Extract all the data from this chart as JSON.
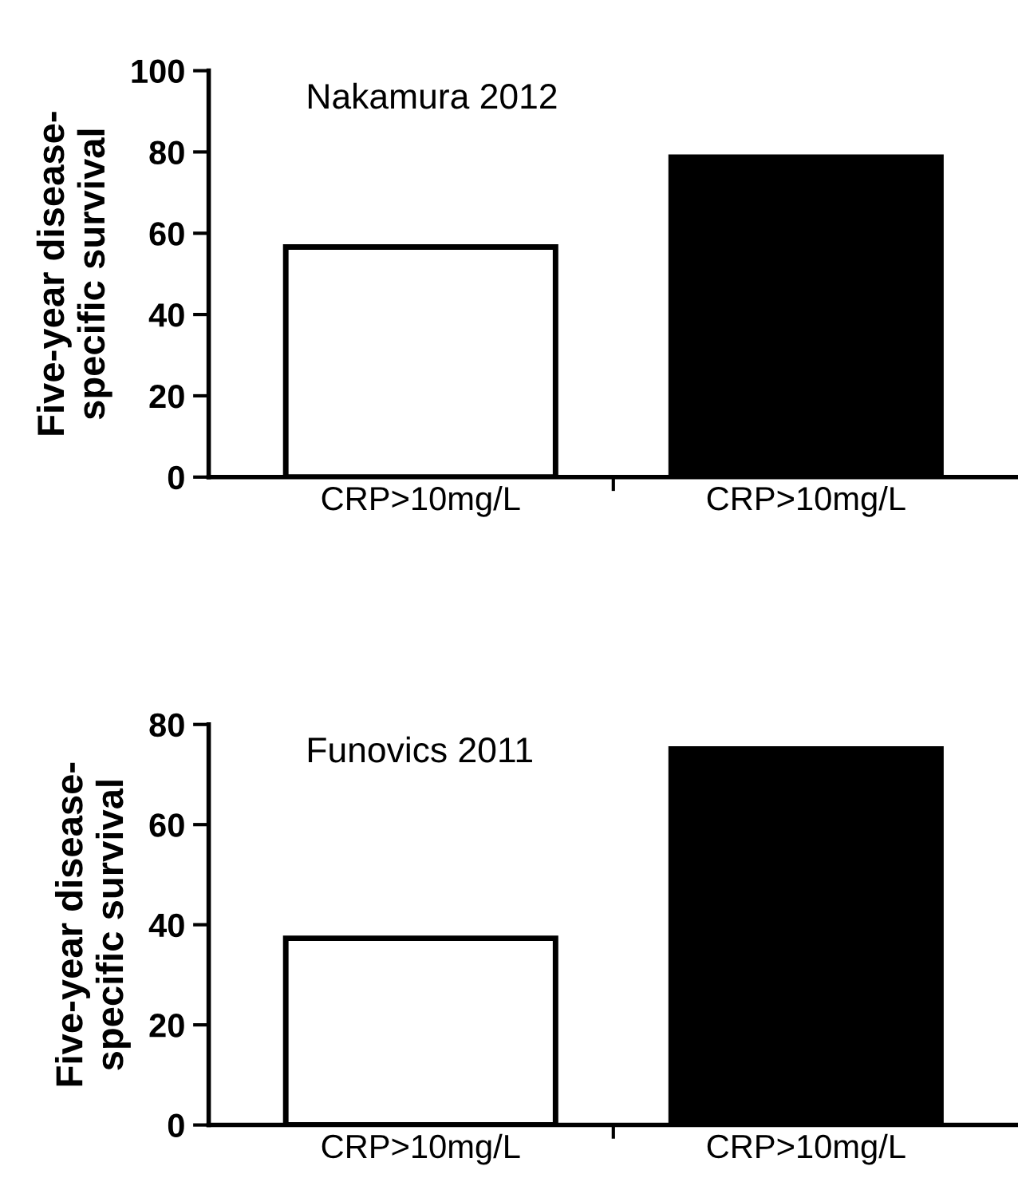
{
  "chart_data": [
    {
      "type": "bar",
      "title": "Nakamura 2012",
      "ylabel": "Five-year disease-\nspecific survival",
      "categories": [
        "CRP>10mg/L",
        "CRP>10mg/L"
      ],
      "values": [
        56.6,
        78.7
      ],
      "colors": [
        "#ffffff",
        "#000000"
      ],
      "ylim": [
        0,
        100
      ],
      "yticks": [
        0,
        20,
        40,
        60,
        80,
        100
      ],
      "grid": false,
      "legend": false
    },
    {
      "type": "bar",
      "title": "Funovics 2011",
      "ylabel": "Five-year disease-\nspecific survival",
      "categories": [
        "CRP>10mg/L",
        "CRP>10mg/L"
      ],
      "values": [
        37.3,
        75.1
      ],
      "colors": [
        "#ffffff",
        "#000000"
      ],
      "ylim": [
        0,
        80
      ],
      "yticks": [
        0,
        20,
        40,
        60,
        80
      ],
      "grid": false,
      "legend": false
    }
  ]
}
